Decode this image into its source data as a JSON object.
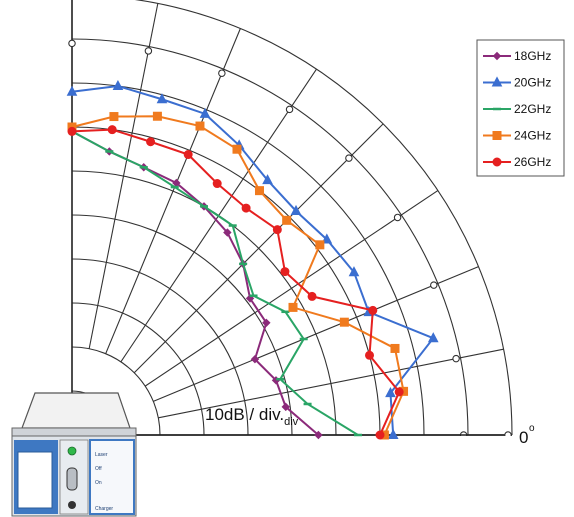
{
  "chart_data": {
    "type": "polar-line",
    "scale_label": "10dB / div.",
    "scale_subscript": "div",
    "angle_label": "0",
    "angle_unit": "o",
    "angles_deg": [
      0,
      7.5,
      15,
      22.5,
      30,
      37.5,
      45,
      52.5,
      60,
      67.5,
      75,
      82.5,
      90
    ],
    "r_divisions": 10,
    "grid": true,
    "legend_position": "top-right",
    "series": [
      {
        "name": "18GHz",
        "color": "#8b2a7a",
        "marker": "diamond",
        "r": [
          6.9,
          6.5,
          6.3,
          6.2,
          6.0,
          5.8,
          5.5,
          5.1,
          5.1,
          4.5,
          4.8,
          4.9,
          5.6
        ]
      },
      {
        "name": "20GHz",
        "color": "#3b6ed0",
        "marker": "triangle",
        "r": [
          7.8,
          8.0,
          7.9,
          7.9,
          7.6,
          7.3,
          7.2,
          7.3,
          7.4,
          7.3,
          8.5,
          7.3,
          7.3
        ]
      },
      {
        "name": "22GHz",
        "color": "#2aa566",
        "marker": "dash",
        "r": [
          6.9,
          6.5,
          6.3,
          6.1,
          6.0,
          6.0,
          5.5,
          5.2,
          5.6,
          5.7,
          4.9,
          5.4,
          6.5
        ]
      },
      {
        "name": "24GHz",
        "color": "#f07a1e",
        "marker": "square",
        "r": [
          7.0,
          7.3,
          7.5,
          7.6,
          7.5,
          7.0,
          6.9,
          7.1,
          5.8,
          6.7,
          7.6,
          7.6,
          7.1
        ]
      },
      {
        "name": "26GHz",
        "color": "#e52020",
        "marker": "circle",
        "r": [
          6.9,
          7.0,
          6.9,
          6.9,
          6.6,
          6.5,
          6.6,
          6.1,
          6.3,
          7.4,
          7.0,
          7.5,
          7.0
        ]
      }
    ]
  },
  "device": {
    "labels": [
      "Laser",
      "Off",
      "On",
      "Charger"
    ]
  }
}
